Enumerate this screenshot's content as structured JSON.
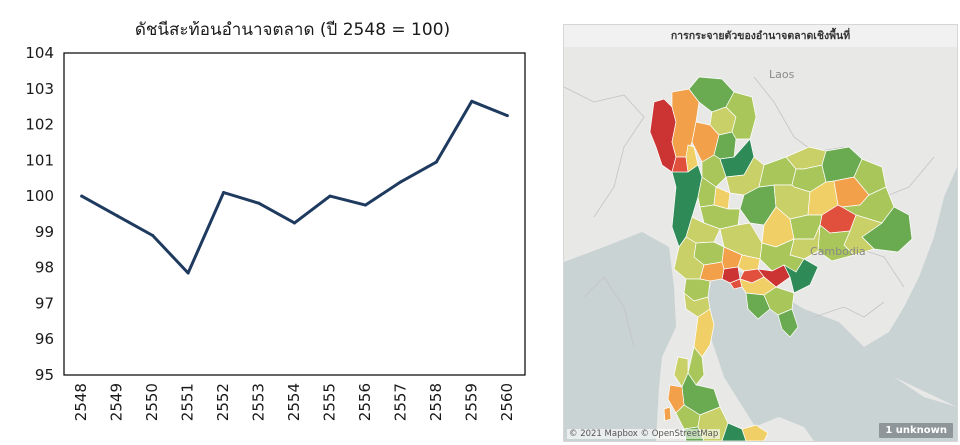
{
  "chart_data": {
    "type": "line",
    "title": "ดัชนีสะท้อนอำนาจตลาด (ปี 2548 = 100)",
    "x": [
      "2548",
      "2549",
      "2550",
      "2551",
      "2552",
      "2553",
      "2554",
      "2555",
      "2556",
      "2557",
      "2558",
      "2559",
      "2560"
    ],
    "series": [
      {
        "values": [
          100.0,
          99.45,
          98.9,
          97.85,
          100.1,
          99.8,
          99.25,
          100.0,
          99.75,
          100.4,
          100.95,
          102.65,
          102.25
        ]
      }
    ],
    "ylim": [
      95,
      104
    ],
    "yticks": [
      95,
      96,
      97,
      98,
      99,
      100,
      101,
      102,
      103,
      104
    ],
    "grid": false,
    "line_color": "#1f3a5f"
  },
  "map": {
    "title": "การกระจายตัวของอำนาจตลาดเชิงพื้นที่",
    "place_labels": {
      "laos": "Laos",
      "cambodia": "Cambodia"
    },
    "attribution": "© 2021 Mapbox © OpenStreetMap",
    "unknown_badge": "1 unknown",
    "colors": {
      "sea": "#c9d3d3",
      "background_land": "#e8e8e6",
      "dark_green": "#2e8b57",
      "green": "#6aaa50",
      "light_green": "#a8c65a",
      "yellow_green": "#c9d068",
      "yellow": "#f0cf66",
      "orange": "#f2a14a",
      "red": "#e0503c",
      "dark_red": "#cc3333"
    }
  }
}
